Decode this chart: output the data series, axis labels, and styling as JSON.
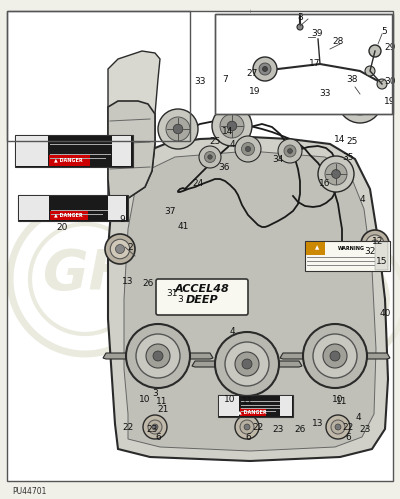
{
  "bg_color": "#f0f0e8",
  "diagram_bg": "#ffffff",
  "watermark_color": "#eaeade",
  "watermark_text": "GF",
  "part_number_bottom": "PU44701",
  "accel_label_line1": "ACCEL48",
  "accel_label_line2": "DEEP",
  "line_color": "#2a2a2a",
  "gray_fill": "#c8c8c0",
  "light_gray": "#d8d8d0",
  "dark_gray": "#888880",
  "white": "#ffffff",
  "border_color": "#555555",
  "warning_red": "#cc0000",
  "warning_black": "#111111",
  "fig_w": 4.0,
  "fig_h": 4.99,
  "dpi": 100,
  "xlim": [
    0,
    400
  ],
  "ylim": [
    0,
    499
  ]
}
